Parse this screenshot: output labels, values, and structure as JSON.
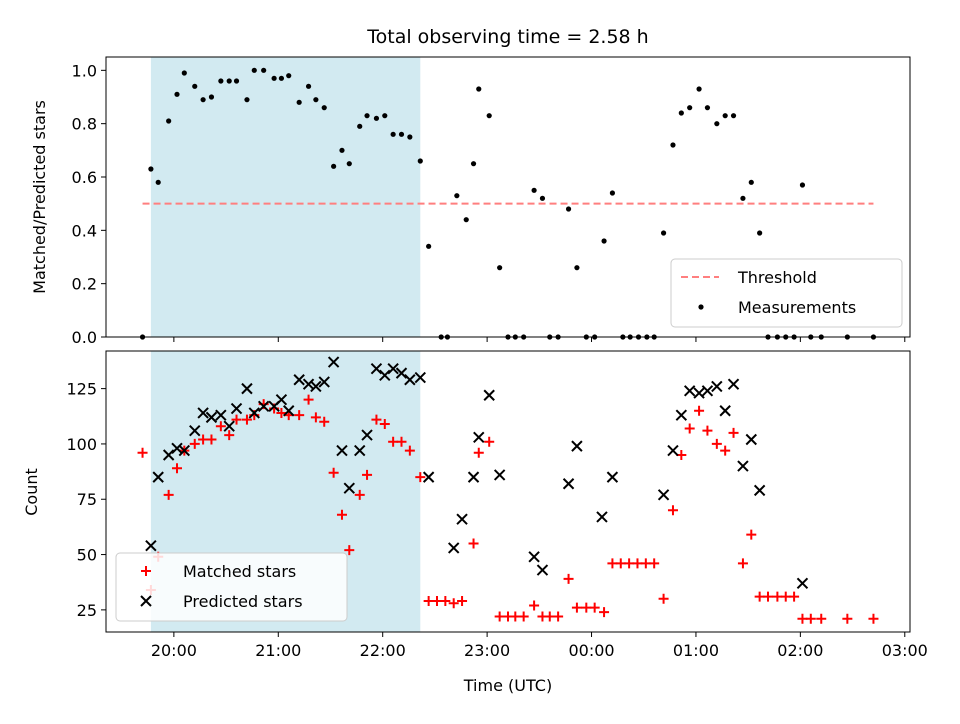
{
  "chart_data": {
    "type": "scatter",
    "title": "Total observing time = 2.58 h",
    "xlabel": "Time (UTC)",
    "x_unit": "hours after 20:00 UTC",
    "xlim": [
      -0.65,
      7.05
    ],
    "x_ticks": [
      0,
      1,
      2,
      3,
      4,
      5,
      6,
      7
    ],
    "x_tick_labels": [
      "20:00",
      "21:00",
      "22:00",
      "23:00",
      "00:00",
      "01:00",
      "02:00",
      "03:00"
    ],
    "observing_window": [
      -0.22,
      2.36
    ],
    "colors": {
      "window": "#add8e6",
      "threshold": "#ff7f7f",
      "measurements": "#000000",
      "matched": "#ff0000",
      "predicted": "#000000"
    },
    "panels": [
      {
        "name": "ratio",
        "ylabel": "Matched/Predicted stars",
        "ylim": [
          0,
          1.05
        ],
        "y_ticks": [
          0.0,
          0.2,
          0.4,
          0.6,
          0.8,
          1.0
        ],
        "y_tick_labels": [
          "0.0",
          "0.2",
          "0.4",
          "0.6",
          "0.8",
          "1.0"
        ],
        "legend": "lower right",
        "legend_entries": [
          "Threshold",
          "Measurements"
        ],
        "threshold": {
          "name": "Threshold",
          "y": 0.5,
          "x_range": [
            -0.3,
            6.7
          ],
          "style": "dashed"
        },
        "series": [
          {
            "name": "Measurements",
            "marker": "dot",
            "points": [
              [
                -0.3,
                0.0
              ],
              [
                -0.22,
                0.63
              ],
              [
                -0.15,
                0.58
              ],
              [
                -0.05,
                0.81
              ],
              [
                0.03,
                0.91
              ],
              [
                0.1,
                0.99
              ],
              [
                0.2,
                0.94
              ],
              [
                0.28,
                0.89
              ],
              [
                0.36,
                0.9
              ],
              [
                0.45,
                0.96
              ],
              [
                0.53,
                0.96
              ],
              [
                0.6,
                0.96
              ],
              [
                0.7,
                0.89
              ],
              [
                0.77,
                1.0
              ],
              [
                0.86,
                1.0
              ],
              [
                0.96,
                0.97
              ],
              [
                1.03,
                0.97
              ],
              [
                1.1,
                0.98
              ],
              [
                1.2,
                0.88
              ],
              [
                1.29,
                0.94
              ],
              [
                1.36,
                0.89
              ],
              [
                1.44,
                0.86
              ],
              [
                1.53,
                0.64
              ],
              [
                1.61,
                0.7
              ],
              [
                1.68,
                0.65
              ],
              [
                1.78,
                0.79
              ],
              [
                1.85,
                0.83
              ],
              [
                1.94,
                0.82
              ],
              [
                2.02,
                0.83
              ],
              [
                2.1,
                0.76
              ],
              [
                2.18,
                0.76
              ],
              [
                2.26,
                0.75
              ],
              [
                2.36,
                0.66
              ],
              [
                2.44,
                0.34
              ],
              [
                2.56,
                0.0
              ],
              [
                2.62,
                0.0
              ],
              [
                2.71,
                0.53
              ],
              [
                2.8,
                0.44
              ],
              [
                2.87,
                0.65
              ],
              [
                2.92,
                0.93
              ],
              [
                3.02,
                0.83
              ],
              [
                3.12,
                0.26
              ],
              [
                3.2,
                0.0
              ],
              [
                3.27,
                0.0
              ],
              [
                3.35,
                0.0
              ],
              [
                3.45,
                0.55
              ],
              [
                3.53,
                0.52
              ],
              [
                3.6,
                0.0
              ],
              [
                3.68,
                0.0
              ],
              [
                3.78,
                0.48
              ],
              [
                3.86,
                0.26
              ],
              [
                3.95,
                0.0
              ],
              [
                4.03,
                0.0
              ],
              [
                4.12,
                0.36
              ],
              [
                4.2,
                0.54
              ],
              [
                4.3,
                0.0
              ],
              [
                4.37,
                0.0
              ],
              [
                4.45,
                0.0
              ],
              [
                4.53,
                0.0
              ],
              [
                4.6,
                0.0
              ],
              [
                4.69,
                0.39
              ],
              [
                4.78,
                0.72
              ],
              [
                4.86,
                0.84
              ],
              [
                4.94,
                0.86
              ],
              [
                5.03,
                0.93
              ],
              [
                5.11,
                0.86
              ],
              [
                5.2,
                0.8
              ],
              [
                5.28,
                0.83
              ],
              [
                5.36,
                0.83
              ],
              [
                5.45,
                0.52
              ],
              [
                5.53,
                0.58
              ],
              [
                5.61,
                0.39
              ],
              [
                5.69,
                0.0
              ],
              [
                5.78,
                0.0
              ],
              [
                5.86,
                0.0
              ],
              [
                5.94,
                0.0
              ],
              [
                6.02,
                0.57
              ],
              [
                6.1,
                0.0
              ],
              [
                6.2,
                0.0
              ],
              [
                6.45,
                0.0
              ],
              [
                6.7,
                0.0
              ]
            ]
          }
        ]
      },
      {
        "name": "counts",
        "ylabel": "Count",
        "ylim": [
          15,
          142
        ],
        "y_ticks": [
          25,
          50,
          75,
          100,
          125
        ],
        "y_tick_labels": [
          "25",
          "50",
          "75",
          "100",
          "125"
        ],
        "legend": "lower left",
        "legend_entries": [
          "Matched stars",
          "Predicted stars"
        ],
        "series": [
          {
            "name": "Matched stars",
            "marker": "plus",
            "points": [
              [
                -0.3,
                96
              ],
              [
                -0.22,
                34
              ],
              [
                -0.15,
                49
              ],
              [
                -0.05,
                77
              ],
              [
                0.03,
                89
              ],
              [
                0.1,
                97
              ],
              [
                0.2,
                100
              ],
              [
                0.28,
                102
              ],
              [
                0.36,
                102
              ],
              [
                0.45,
                108
              ],
              [
                0.53,
                104
              ],
              [
                0.6,
                111
              ],
              [
                0.7,
                111
              ],
              [
                0.77,
                113
              ],
              [
                0.86,
                118
              ],
              [
                0.96,
                116
              ],
              [
                1.03,
                114
              ],
              [
                1.1,
                113
              ],
              [
                1.2,
                113
              ],
              [
                1.29,
                120
              ],
              [
                1.36,
                112
              ],
              [
                1.44,
                110
              ],
              [
                1.53,
                87
              ],
              [
                1.61,
                68
              ],
              [
                1.68,
                52
              ],
              [
                1.78,
                77
              ],
              [
                1.85,
                86
              ],
              [
                1.94,
                111
              ],
              [
                2.02,
                109
              ],
              [
                2.1,
                101
              ],
              [
                2.18,
                101
              ],
              [
                2.26,
                97
              ],
              [
                2.36,
                85
              ],
              [
                2.44,
                29
              ],
              [
                2.52,
                29
              ],
              [
                2.6,
                29
              ],
              [
                2.68,
                28
              ],
              [
                2.76,
                29
              ],
              [
                2.87,
                55
              ],
              [
                2.92,
                96
              ],
              [
                3.02,
                101
              ],
              [
                3.12,
                22
              ],
              [
                3.2,
                22
              ],
              [
                3.27,
                22
              ],
              [
                3.35,
                22
              ],
              [
                3.45,
                27
              ],
              [
                3.53,
                22
              ],
              [
                3.6,
                22
              ],
              [
                3.68,
                22
              ],
              [
                3.78,
                39
              ],
              [
                3.86,
                26
              ],
              [
                3.95,
                26
              ],
              [
                4.03,
                26
              ],
              [
                4.12,
                24
              ],
              [
                4.2,
                46
              ],
              [
                4.28,
                46
              ],
              [
                4.36,
                46
              ],
              [
                4.44,
                46
              ],
              [
                4.52,
                46
              ],
              [
                4.6,
                46
              ],
              [
                4.69,
                30
              ],
              [
                4.78,
                70
              ],
              [
                4.86,
                95
              ],
              [
                4.94,
                107
              ],
              [
                5.03,
                115
              ],
              [
                5.11,
                106
              ],
              [
                5.2,
                100
              ],
              [
                5.28,
                97
              ],
              [
                5.36,
                105
              ],
              [
                5.45,
                46
              ],
              [
                5.53,
                59
              ],
              [
                5.61,
                31
              ],
              [
                5.69,
                31
              ],
              [
                5.78,
                31
              ],
              [
                5.86,
                31
              ],
              [
                5.94,
                31
              ],
              [
                6.02,
                21
              ],
              [
                6.1,
                21
              ],
              [
                6.2,
                21
              ],
              [
                6.45,
                21
              ],
              [
                6.7,
                21
              ]
            ]
          },
          {
            "name": "Predicted stars",
            "marker": "x",
            "points": [
              [
                -0.22,
                54
              ],
              [
                -0.15,
                85
              ],
              [
                -0.05,
                95
              ],
              [
                0.03,
                98
              ],
              [
                0.1,
                97
              ],
              [
                0.2,
                106
              ],
              [
                0.28,
                114
              ],
              [
                0.36,
                112
              ],
              [
                0.45,
                113
              ],
              [
                0.53,
                108
              ],
              [
                0.6,
                116
              ],
              [
                0.7,
                125
              ],
              [
                0.77,
                114
              ],
              [
                0.86,
                117
              ],
              [
                0.96,
                117
              ],
              [
                1.03,
                120
              ],
              [
                1.1,
                115
              ],
              [
                1.2,
                129
              ],
              [
                1.29,
                127
              ],
              [
                1.36,
                126
              ],
              [
                1.44,
                128
              ],
              [
                1.53,
                137
              ],
              [
                1.61,
                97
              ],
              [
                1.68,
                80
              ],
              [
                1.78,
                97
              ],
              [
                1.85,
                104
              ],
              [
                1.94,
                134
              ],
              [
                2.02,
                131
              ],
              [
                2.1,
                134
              ],
              [
                2.18,
                132
              ],
              [
                2.26,
                129
              ],
              [
                2.36,
                130
              ],
              [
                2.44,
                85
              ],
              [
                2.68,
                53
              ],
              [
                2.76,
                66
              ],
              [
                2.87,
                85
              ],
              [
                2.92,
                103
              ],
              [
                3.02,
                122
              ],
              [
                3.12,
                86
              ],
              [
                3.45,
                49
              ],
              [
                3.53,
                43
              ],
              [
                3.78,
                82
              ],
              [
                3.86,
                99
              ],
              [
                4.1,
                67
              ],
              [
                4.2,
                85
              ],
              [
                4.69,
                77
              ],
              [
                4.78,
                97
              ],
              [
                4.86,
                113
              ],
              [
                4.94,
                124
              ],
              [
                5.03,
                123
              ],
              [
                5.11,
                124
              ],
              [
                5.2,
                126
              ],
              [
                5.28,
                115
              ],
              [
                5.36,
                127
              ],
              [
                5.45,
                90
              ],
              [
                5.53,
                102
              ],
              [
                5.61,
                79
              ],
              [
                6.02,
                37
              ]
            ]
          }
        ]
      }
    ]
  }
}
